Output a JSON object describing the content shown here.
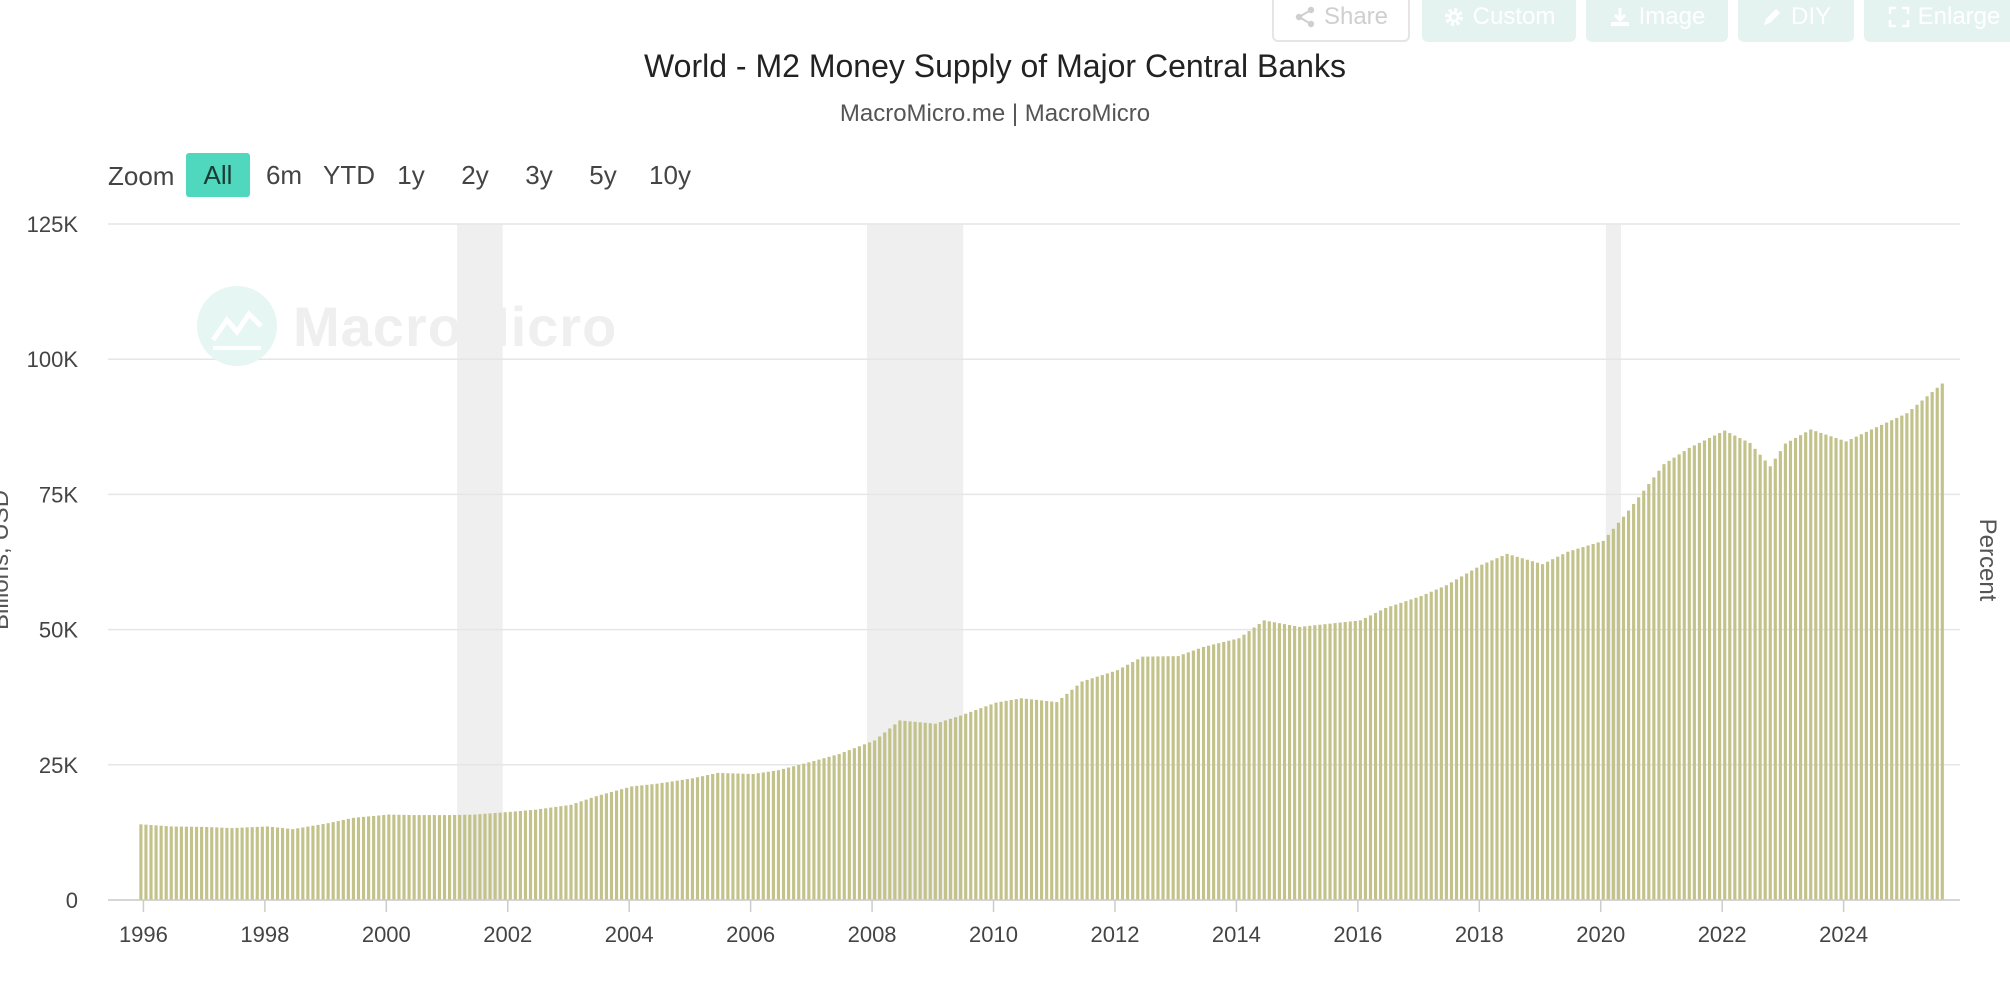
{
  "toolbar": {
    "share_label": "Share",
    "custom_label": "Custom",
    "image_label": "Image",
    "diy_label": "DIY",
    "enlarge_label": "Enlarge"
  },
  "header": {
    "title": "World - M2 Money Supply of Major Central Banks",
    "subtitle": "MacroMicro.me | MacroMicro"
  },
  "zoom": {
    "label": "Zoom",
    "options": [
      "All",
      "6m",
      "YTD",
      "1y",
      "2y",
      "3y",
      "5y",
      "10y"
    ],
    "selected": "All"
  },
  "watermark": {
    "text": "MacroMicro"
  },
  "colors": {
    "bar": "#c2c28a",
    "recession_band": "#efefef",
    "zoom_active": "#4fd8bd",
    "grid": "#e6e6e6"
  },
  "chart_data": {
    "type": "bar",
    "title": "World - M2 Money Supply of Major Central Banks",
    "subtitle": "MacroMicro.me | MacroMicro",
    "ylabel": "Billions, USD",
    "y2label": "Percent",
    "ylim": [
      0,
      125000
    ],
    "xlim": [
      "1995-06-01",
      "2025-12-01"
    ],
    "y_ticks": [
      "0",
      "25K",
      "50K",
      "75K",
      "100K",
      "125K"
    ],
    "x_ticks": [
      "1996",
      "1998",
      "2000",
      "2002",
      "2004",
      "2006",
      "2008",
      "2010",
      "2012",
      "2014",
      "2016",
      "2018",
      "2020",
      "2022",
      "2024"
    ],
    "grid": true,
    "legend": "none",
    "recession_bands": [
      {
        "start": "2001-03",
        "end": "2001-11"
      },
      {
        "start": "2007-12",
        "end": "2009-06"
      },
      {
        "start": "2020-02",
        "end": "2020-04"
      }
    ],
    "series": [
      {
        "frequency": "monthly",
        "start": "1995-12",
        "end": "2025-08",
        "anchor_dates": [
          "1995-12",
          "1996-06",
          "1997-01",
          "1997-06",
          "1998-01",
          "1998-06",
          "1999-01",
          "1999-06",
          "2000-01",
          "2000-06",
          "2001-01",
          "2001-06",
          "2002-01",
          "2002-06",
          "2003-01",
          "2003-06",
          "2004-01",
          "2004-06",
          "2005-01",
          "2005-06",
          "2006-01",
          "2006-06",
          "2007-01",
          "2007-06",
          "2008-01",
          "2008-06",
          "2009-01",
          "2009-06",
          "2010-01",
          "2010-06",
          "2011-01",
          "2011-06",
          "2012-01",
          "2012-06",
          "2013-01",
          "2013-06",
          "2014-01",
          "2014-06",
          "2015-01",
          "2015-06",
          "2016-01",
          "2016-06",
          "2017-01",
          "2017-06",
          "2018-01",
          "2018-06",
          "2019-01",
          "2019-06",
          "2020-01",
          "2020-06",
          "2021-01",
          "2021-06",
          "2022-01",
          "2022-06",
          "2022-10",
          "2023-01",
          "2023-06",
          "2024-01",
          "2024-06",
          "2025-01",
          "2025-08"
        ],
        "anchor_values": [
          14000,
          13600,
          13500,
          13300,
          13600,
          13100,
          14200,
          15200,
          15800,
          15700,
          15700,
          15800,
          16300,
          16700,
          17600,
          19200,
          21000,
          21500,
          22500,
          23500,
          23300,
          24000,
          25700,
          27000,
          29500,
          33200,
          32600,
          34100,
          36500,
          37300,
          36600,
          40400,
          42500,
          45000,
          45100,
          46800,
          48400,
          51700,
          50500,
          51000,
          51700,
          54000,
          56200,
          58200,
          62000,
          64000,
          62100,
          64400,
          66400,
          72000,
          80600,
          83600,
          86800,
          84500,
          80200,
          84400,
          87000,
          84800,
          87000,
          90000,
          95500
        ]
      }
    ]
  }
}
